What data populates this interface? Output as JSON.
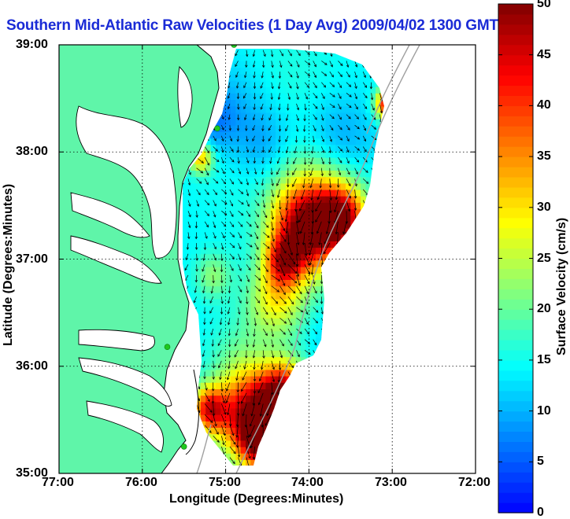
{
  "title": "Southern Mid-Atlantic Raw Velocities (1 Day Avg) 2009/04/02 1300 GMT",
  "chart_data": {
    "type": "heatmap",
    "title": "Southern Mid-Atlantic Raw Velocities (1 Day Avg) 2009/04/02 1300 GMT",
    "xlabel": "Longitude (Degrees:Minutes)",
    "ylabel": "Latitude (Degrees:Minutes)",
    "xlim": [
      -77,
      -72
    ],
    "ylim": [
      35,
      39
    ],
    "x_ticks": [
      {
        "value": -77,
        "label": "77:00"
      },
      {
        "value": -76,
        "label": "76:00"
      },
      {
        "value": -75,
        "label": "75:00"
      },
      {
        "value": -74,
        "label": "74:00"
      },
      {
        "value": -73,
        "label": "73:00"
      },
      {
        "value": -72,
        "label": "72:00"
      }
    ],
    "y_ticks": [
      {
        "value": 35,
        "label": "35:00"
      },
      {
        "value": 36,
        "label": "36:00"
      },
      {
        "value": 37,
        "label": "37:00"
      },
      {
        "value": 38,
        "label": "38:00"
      },
      {
        "value": 39,
        "label": "39:00"
      }
    ],
    "grid": true,
    "colorbar": {
      "label": "Surface Velocity (cm/s)",
      "range": [
        0,
        50
      ],
      "ticks": [
        {
          "value": 0,
          "label": "0"
        },
        {
          "value": 5,
          "label": "5"
        },
        {
          "value": 10,
          "label": "10"
        },
        {
          "value": 15,
          "label": "15"
        },
        {
          "value": 20,
          "label": "20"
        },
        {
          "value": 25,
          "label": "25"
        },
        {
          "value": 30,
          "label": "30"
        },
        {
          "value": 35,
          "label": "35"
        },
        {
          "value": 40,
          "label": "40"
        },
        {
          "value": 45,
          "label": "45"
        },
        {
          "value": 50,
          "label": "50"
        }
      ],
      "colors": [
        "#0000ff",
        "#0080ff",
        "#00ffff",
        "#80ff80",
        "#ffff00",
        "#ff8000",
        "#ff0000",
        "#800000"
      ]
    },
    "land_color": "#5ff5a9",
    "coast_color": "#000000",
    "isobath_color": "#a0a0a0",
    "station_color": "#1ec81e",
    "stations": [
      {
        "lon": -74.9,
        "lat": 39.0
      },
      {
        "lon": -75.1,
        "lat": 38.22
      },
      {
        "lon": -75.7,
        "lat": 36.18
      },
      {
        "lon": -75.5,
        "lat": 35.25
      }
    ],
    "speed_zones": [
      {
        "lon": -74.2,
        "lat": 38.65,
        "sigma": 0.45,
        "value": 16
      },
      {
        "lon": -73.65,
        "lat": 38.1,
        "sigma": 0.3,
        "value": 8
      },
      {
        "lon": -74.55,
        "lat": 38.1,
        "sigma": 0.25,
        "value": 9
      },
      {
        "lon": -74.9,
        "lat": 38.5,
        "sigma": 0.3,
        "value": 11
      },
      {
        "lon": -75.15,
        "lat": 38.3,
        "sigma": 0.2,
        "value": 8
      },
      {
        "lon": -73.9,
        "lat": 37.5,
        "sigma": 0.35,
        "value": 29
      },
      {
        "lon": -74.05,
        "lat": 37.25,
        "sigma": 0.28,
        "value": 43
      },
      {
        "lon": -73.6,
        "lat": 37.38,
        "sigma": 0.2,
        "value": 41
      },
      {
        "lon": -74.3,
        "lat": 37.0,
        "sigma": 0.15,
        "value": 33
      },
      {
        "lon": -74.4,
        "lat": 36.6,
        "sigma": 0.25,
        "value": 27
      },
      {
        "lon": -74.35,
        "lat": 36.8,
        "sigma": 0.15,
        "value": 18
      },
      {
        "lon": -75.0,
        "lat": 37.7,
        "sigma": 0.3,
        "value": 15
      },
      {
        "lon": -74.85,
        "lat": 36.1,
        "sigma": 0.25,
        "value": 18
      },
      {
        "lon": -74.7,
        "lat": 35.55,
        "sigma": 0.28,
        "value": 47
      },
      {
        "lon": -74.3,
        "lat": 35.75,
        "sigma": 0.2,
        "value": 45
      },
      {
        "lon": -74.55,
        "lat": 35.3,
        "sigma": 0.18,
        "value": 44
      },
      {
        "lon": -75.2,
        "lat": 35.6,
        "sigma": 0.15,
        "value": 40
      },
      {
        "lon": -73.05,
        "lat": 38.45,
        "sigma": 0.1,
        "value": 46
      },
      {
        "lon": -75.3,
        "lat": 37.95,
        "sigma": 0.1,
        "value": 32
      },
      {
        "lon": -75.15,
        "lat": 36.85,
        "sigma": 0.15,
        "value": 22
      },
      {
        "lon": -73.75,
        "lat": 36.25,
        "sigma": 0.2,
        "value": 12
      }
    ]
  }
}
